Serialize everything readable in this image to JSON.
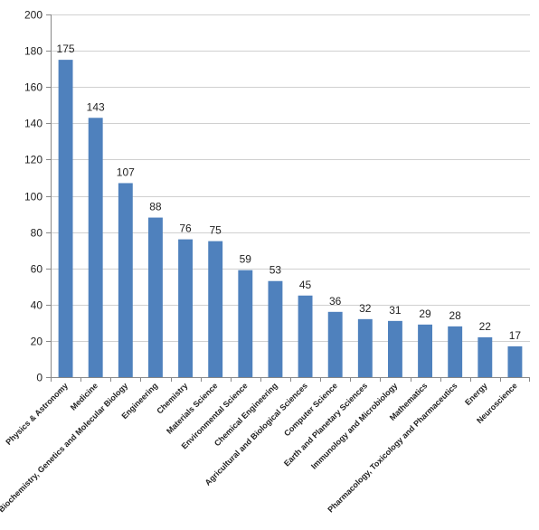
{
  "chart_data": {
    "type": "bar",
    "title": "",
    "xlabel": "",
    "ylabel": "",
    "ylim": [
      0,
      200
    ],
    "yticks": [
      0,
      20,
      40,
      60,
      80,
      100,
      120,
      140,
      160,
      180,
      200
    ],
    "grid": true,
    "legend": "none",
    "bar_color": "#4f81bd",
    "grid_color": "#d0d0d0",
    "categories": [
      "Physics & Astronomy",
      "Medicine",
      "Biochemistry, Genetics and Molecular Biology",
      "Engineering",
      "Chemistry",
      "Materials Science",
      "Environmental Science",
      "Chemical Engineering",
      "Agricultural and Biological Sciences",
      "Computer Science",
      "Earth and Planetary Sciences",
      "Immunology and Microbiology",
      "Mathematics",
      "Pharmacology, Toxicology and Pharmaceutics",
      "Energy",
      "Neuroscience"
    ],
    "values": [
      175,
      143,
      107,
      88,
      76,
      75,
      59,
      53,
      45,
      36,
      32,
      31,
      29,
      28,
      22,
      17
    ]
  }
}
